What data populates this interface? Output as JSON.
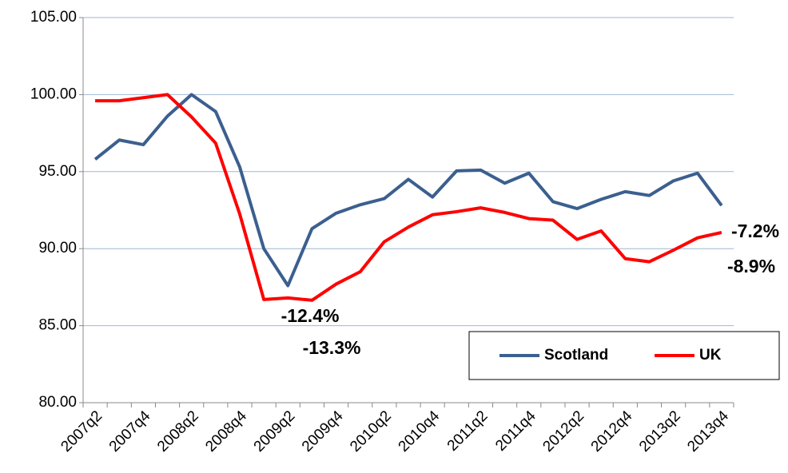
{
  "chart_data": {
    "type": "line",
    "categories": [
      "2007q2",
      null,
      "2007q4",
      null,
      "2008q2",
      null,
      "2008q4",
      null,
      "2009q2",
      null,
      "2009q4",
      null,
      "2010q2",
      null,
      "2010q4",
      null,
      "2011q2",
      null,
      "2011q4",
      null,
      "2012q2",
      null,
      "2012q4",
      null,
      "2013q2",
      null,
      "2013q4"
    ],
    "series": [
      {
        "name": "Scotland",
        "color": "#3b5f8f",
        "values": [
          95.8,
          97.05,
          96.75,
          98.6,
          100.0,
          98.9,
          95.3,
          90.0,
          87.6,
          91.3,
          92.3,
          92.85,
          93.25,
          94.5,
          93.35,
          95.05,
          95.1,
          94.25,
          94.9,
          93.05,
          92.6,
          93.2,
          93.7,
          93.45,
          94.4,
          94.9,
          92.8
        ]
      },
      {
        "name": "UK",
        "color": "#ff0000",
        "values": [
          99.6,
          99.6,
          99.8,
          100.0,
          98.55,
          96.85,
          92.25,
          86.7,
          86.8,
          86.65,
          87.7,
          88.5,
          90.45,
          91.4,
          92.2,
          92.4,
          92.65,
          92.35,
          91.95,
          91.85,
          90.6,
          91.15,
          89.35,
          89.15,
          89.9,
          90.7,
          91.05
        ]
      }
    ],
    "ylim": [
      80,
      105
    ],
    "yticks": [
      {
        "value": 80,
        "label": "80.00"
      },
      {
        "value": 85,
        "label": "85.00"
      },
      {
        "value": 90,
        "label": "90.00"
      },
      {
        "value": 95,
        "label": "95.00"
      },
      {
        "value": 100,
        "label": "100.00"
      },
      {
        "value": 105,
        "label": "105.00"
      }
    ],
    "grid": true,
    "legend": "lower right",
    "annotations": [
      "-12.4%",
      "-13.3%",
      "-7.2%",
      "-8.9%"
    ]
  }
}
